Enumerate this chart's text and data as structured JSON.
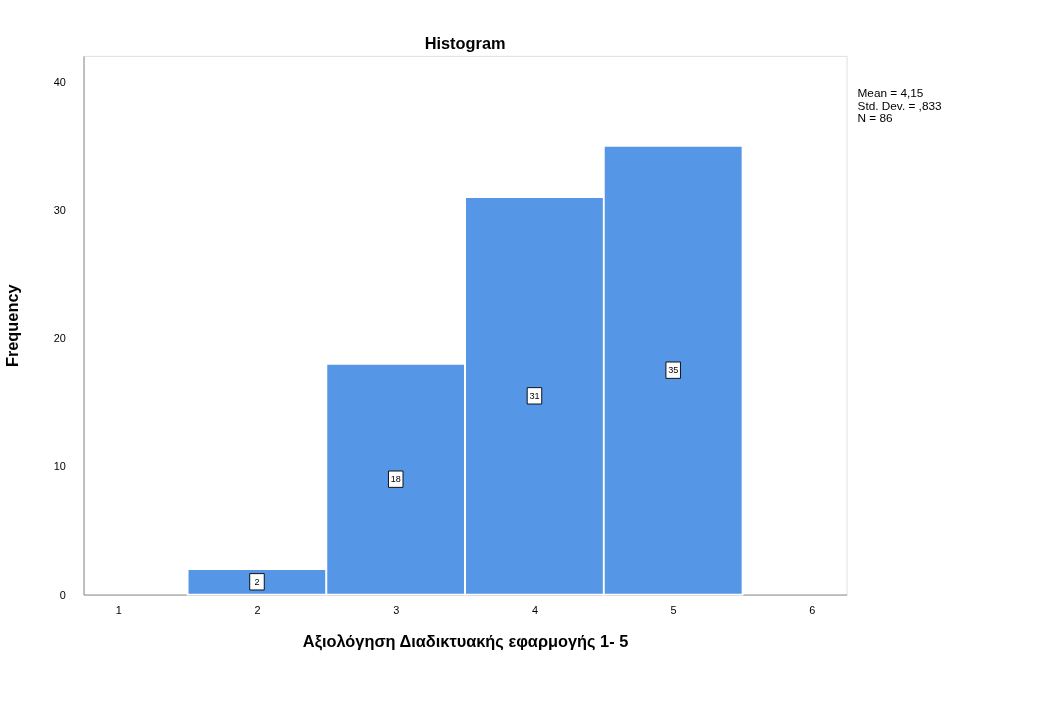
{
  "chart_data": {
    "type": "histogram",
    "title": "Histogram",
    "xlabel": "Αξιολόγηση Διαδικτυακής εφαρμογής 1- 5",
    "ylabel": "Frequency",
    "bins": [
      1.5,
      2.5,
      3.5,
      4.5,
      5.5
    ],
    "values": [
      2,
      18,
      31,
      35
    ],
    "color": "#5596e6",
    "xlim": [
      0.75,
      6.25
    ],
    "xticks": [
      1,
      2,
      3,
      4,
      5,
      6
    ],
    "ylim": [
      0,
      42
    ],
    "yticks": [
      0,
      10,
      20,
      30,
      40
    ],
    "data_labels": true,
    "grid": false,
    "annotations": [
      "Mean = 4,15",
      "Std. Dev. = ,833",
      "N = 86"
    ]
  }
}
